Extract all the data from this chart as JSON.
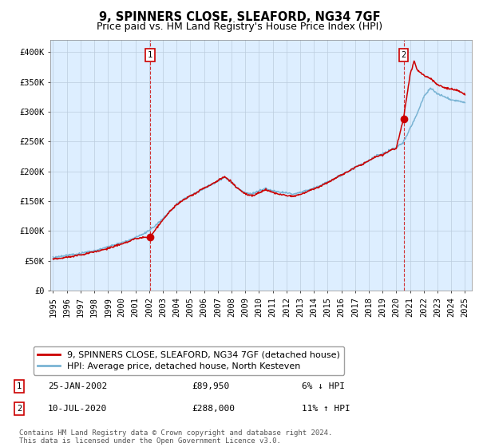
{
  "title": "9, SPINNERS CLOSE, SLEAFORD, NG34 7GF",
  "subtitle": "Price paid vs. HM Land Registry's House Price Index (HPI)",
  "ylim": [
    0,
    420000
  ],
  "yticks": [
    0,
    50000,
    100000,
    150000,
    200000,
    250000,
    300000,
    350000,
    400000
  ],
  "ytick_labels": [
    "£0",
    "£50K",
    "£100K",
    "£150K",
    "£200K",
    "£250K",
    "£300K",
    "£350K",
    "£400K"
  ],
  "x_start_year": 1995,
  "x_end_year": 2025,
  "sale1_date_num": 2002.07,
  "sale1_price": 89950,
  "sale2_date_num": 2020.53,
  "sale2_price": 288000,
  "hpi_color": "#7ab4d4",
  "price_color": "#cc0000",
  "vline_color": "#cc0000",
  "plot_bg_color": "#ddeeff",
  "legend_label_price": "9, SPINNERS CLOSE, SLEAFORD, NG34 7GF (detached house)",
  "legend_label_hpi": "HPI: Average price, detached house, North Kesteven",
  "annotation1_label": "1",
  "annotation1_date": "25-JAN-2002",
  "annotation1_price": "£89,950",
  "annotation1_hpi": "6% ↓ HPI",
  "annotation2_label": "2",
  "annotation2_date": "10-JUL-2020",
  "annotation2_price": "£288,000",
  "annotation2_hpi": "11% ↑ HPI",
  "footer": "Contains HM Land Registry data © Crown copyright and database right 2024.\nThis data is licensed under the Open Government Licence v3.0.",
  "background_color": "#ffffff",
  "grid_color": "#bbccdd",
  "title_fontsize": 10.5,
  "subtitle_fontsize": 9,
  "tick_fontsize": 7.5,
  "legend_fontsize": 8,
  "annotation_fontsize": 8,
  "footer_fontsize": 6.5
}
